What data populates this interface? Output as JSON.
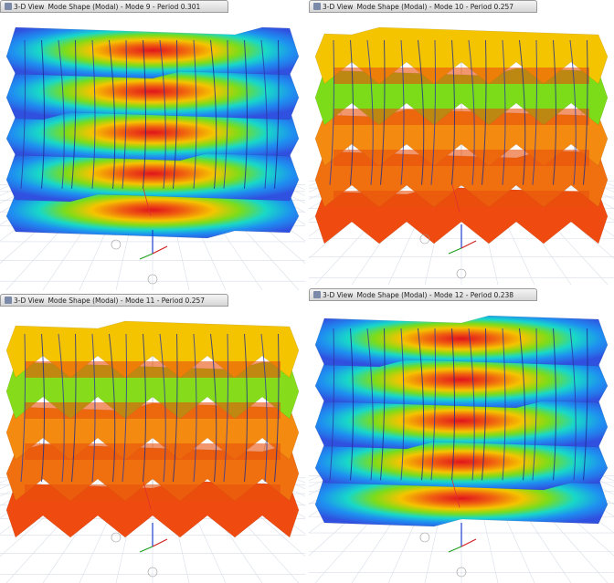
{
  "panels": [
    {
      "tab": "3-D View",
      "caption": "Mode Shape (Modal) - Mode 9 - Period 0.301"
    },
    {
      "tab": "3-D View",
      "caption": "Mode Shape (Modal) - Mode 10 - Period 0.257"
    },
    {
      "tab": "3-D View",
      "caption": "Mode Shape (Modal) - Mode 11 - Period 0.257"
    },
    {
      "tab": "3-D View",
      "caption": "Mode Shape (Modal) - Mode 12 - Period 0.238"
    }
  ]
}
